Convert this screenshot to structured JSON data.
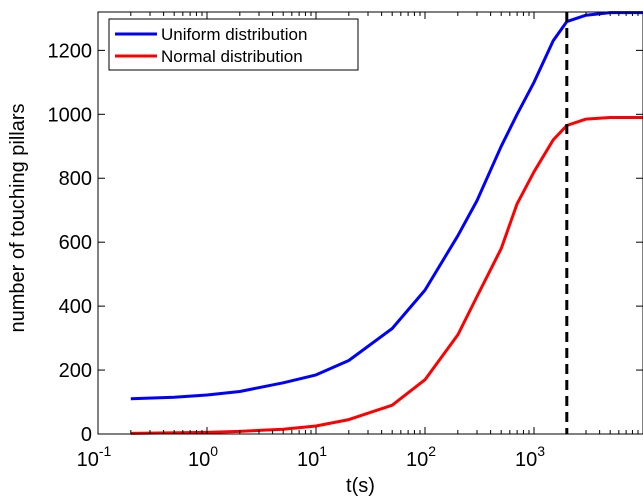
{
  "chart_data": {
    "type": "line",
    "title": "",
    "xlabel": "t(s)",
    "ylabel": "number of touching pillars",
    "xscale": "log",
    "xlim": [
      0.1,
      10000
    ],
    "ylim": [
      0,
      1320
    ],
    "x_ticks": [
      {
        "base": "10",
        "exp": "-1"
      },
      {
        "base": "10",
        "exp": "0"
      },
      {
        "base": "10",
        "exp": "1"
      },
      {
        "base": "10",
        "exp": "2"
      },
      {
        "base": "10",
        "exp": "3"
      }
    ],
    "y_ticks": [
      "0",
      "200",
      "400",
      "600",
      "800",
      "1000",
      "1200"
    ],
    "grid": false,
    "legend_position": "top-left",
    "vline": {
      "x": 2000,
      "style": "dashed",
      "color": "#000000"
    },
    "series": [
      {
        "name": "Uniform distribution",
        "color": "#0000ff",
        "points": [
          [
            0.2,
            110
          ],
          [
            0.5,
            115
          ],
          [
            1,
            122
          ],
          [
            2,
            133
          ],
          [
            5,
            160
          ],
          [
            10,
            185
          ],
          [
            20,
            230
          ],
          [
            50,
            330
          ],
          [
            100,
            450
          ],
          [
            200,
            620
          ],
          [
            300,
            730
          ],
          [
            500,
            900
          ],
          [
            700,
            1000
          ],
          [
            1000,
            1100
          ],
          [
            1500,
            1230
          ],
          [
            2000,
            1290
          ],
          [
            3000,
            1310
          ],
          [
            5000,
            1318
          ],
          [
            10000,
            1318
          ]
        ]
      },
      {
        "name": "Normal distribution",
        "color": "#ff0000",
        "points": [
          [
            0.2,
            2
          ],
          [
            1,
            5
          ],
          [
            2,
            8
          ],
          [
            5,
            15
          ],
          [
            10,
            25
          ],
          [
            20,
            45
          ],
          [
            50,
            90
          ],
          [
            100,
            170
          ],
          [
            200,
            310
          ],
          [
            300,
            430
          ],
          [
            500,
            580
          ],
          [
            700,
            720
          ],
          [
            1000,
            820
          ],
          [
            1500,
            920
          ],
          [
            2000,
            965
          ],
          [
            3000,
            985
          ],
          [
            5000,
            990
          ],
          [
            10000,
            990
          ]
        ]
      }
    ]
  }
}
